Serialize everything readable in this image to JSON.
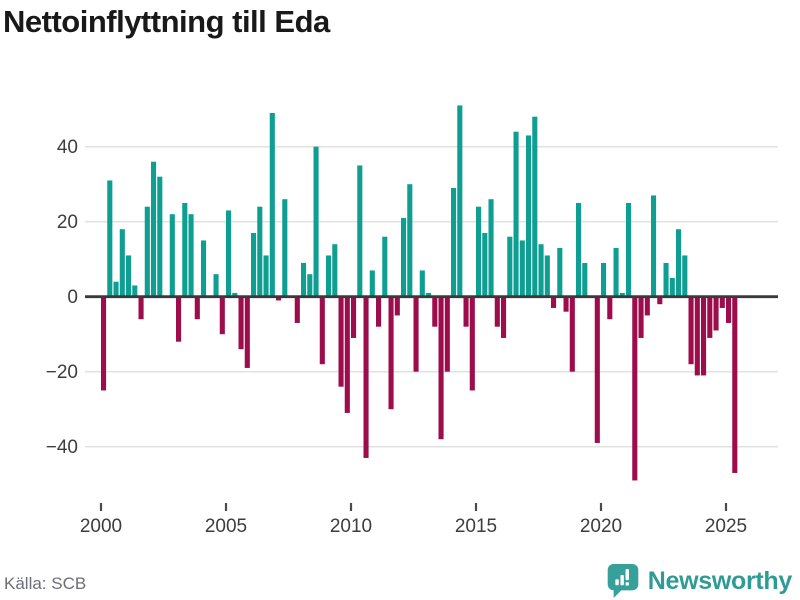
{
  "title": "Nettoinflyttning till Eda",
  "source": "Källa: SCB",
  "brand": {
    "name": "Newsworthy",
    "icon": "bar-chart-speech-bubble-icon"
  },
  "colors": {
    "positive_bar": "#0e9e92",
    "negative_bar": "#9e0d4b",
    "gridline": "#e2e2e2",
    "zero_axis": "#3a3a3a",
    "tick_text": "#3d3d3d",
    "title_text": "#191919",
    "source_text": "#6e6e78",
    "brand_teal": "#2e9c95"
  },
  "chart_data": {
    "type": "bar",
    "title": "Nettoinflyttning till Eda",
    "xlabel": "",
    "ylabel": "",
    "grid": "horizontal",
    "legend": "none",
    "ylim": [
      -52,
      55
    ],
    "y_ticks": [
      40,
      20,
      0,
      -20,
      -40
    ],
    "y_tick_labels": [
      "40",
      "20",
      "0",
      "−20",
      "−40"
    ],
    "x_tick_years": [
      2000,
      2005,
      2010,
      2015,
      2020,
      2025
    ],
    "x_tick_labels": [
      "2000",
      "2005",
      "2010",
      "2015",
      "2020",
      "2025"
    ],
    "x": [
      "2000 Q1",
      "2000 Q2",
      "2000 Q3",
      "2000 Q4",
      "2001 Q1",
      "2001 Q2",
      "2001 Q3",
      "2001 Q4",
      "2002 Q1",
      "2002 Q2",
      "2002 Q3",
      "2002 Q4",
      "2003 Q1",
      "2003 Q2",
      "2003 Q3",
      "2003 Q4",
      "2004 Q1",
      "2004 Q2",
      "2004 Q3",
      "2004 Q4",
      "2005 Q1",
      "2005 Q2",
      "2005 Q3",
      "2005 Q4",
      "2006 Q1",
      "2006 Q2",
      "2006 Q3",
      "2006 Q4",
      "2007 Q1",
      "2007 Q2",
      "2007 Q3",
      "2007 Q4",
      "2008 Q1",
      "2008 Q2",
      "2008 Q3",
      "2008 Q4",
      "2009 Q1",
      "2009 Q2",
      "2009 Q3",
      "2009 Q4",
      "2010 Q1",
      "2010 Q2",
      "2010 Q3",
      "2010 Q4",
      "2011 Q1",
      "2011 Q2",
      "2011 Q3",
      "2011 Q4",
      "2012 Q1",
      "2012 Q2",
      "2012 Q3",
      "2012 Q4",
      "2013 Q1",
      "2013 Q2",
      "2013 Q3",
      "2013 Q4",
      "2014 Q1",
      "2014 Q2",
      "2014 Q3",
      "2014 Q4",
      "2015 Q1",
      "2015 Q2",
      "2015 Q3",
      "2015 Q4",
      "2016 Q1",
      "2016 Q2",
      "2016 Q3",
      "2016 Q4",
      "2017 Q1",
      "2017 Q2",
      "2017 Q3",
      "2017 Q4",
      "2018 Q1",
      "2018 Q2",
      "2018 Q3",
      "2018 Q4",
      "2019 Q1",
      "2019 Q2",
      "2019 Q3",
      "2019 Q4",
      "2020 Q1",
      "2020 Q2",
      "2020 Q3",
      "2020 Q4",
      "2021 Q1",
      "2021 Q2",
      "2021 Q3",
      "2021 Q4",
      "2022 Q1",
      "2022 Q2",
      "2022 Q3",
      "2022 Q4",
      "2023 Q1",
      "2023 Q2",
      "2023 Q3",
      "2023 Q4",
      "2024 Q1",
      "2024 Q2",
      "2024 Q3",
      "2024 Q4",
      "2025 Q1",
      "2025 Q2"
    ],
    "values": [
      -25,
      31,
      4,
      18,
      11,
      3,
      -6,
      24,
      36,
      32,
      0,
      22,
      -12,
      25,
      22,
      -6,
      15,
      0,
      6,
      -10,
      23,
      1,
      -14,
      -19,
      17,
      24,
      11,
      49,
      -1,
      26,
      0,
      -7,
      9,
      6,
      40,
      -18,
      11,
      14,
      -24,
      -31,
      -11,
      35,
      -43,
      7,
      -8,
      16,
      -30,
      -5,
      21,
      30,
      -20,
      7,
      1,
      -8,
      -38,
      -20,
      29,
      51,
      -8,
      -25,
      24,
      17,
      26,
      -8,
      -11,
      16,
      44,
      15,
      43,
      48,
      14,
      11,
      -3,
      13,
      -4,
      -20,
      25,
      9,
      0,
      -39,
      9,
      -6,
      13,
      1,
      25,
      -49,
      -11,
      -5,
      27,
      -2,
      9,
      5,
      18,
      11,
      -18,
      -21,
      -21,
      -11,
      -9,
      -3,
      -7,
      -47
    ]
  }
}
